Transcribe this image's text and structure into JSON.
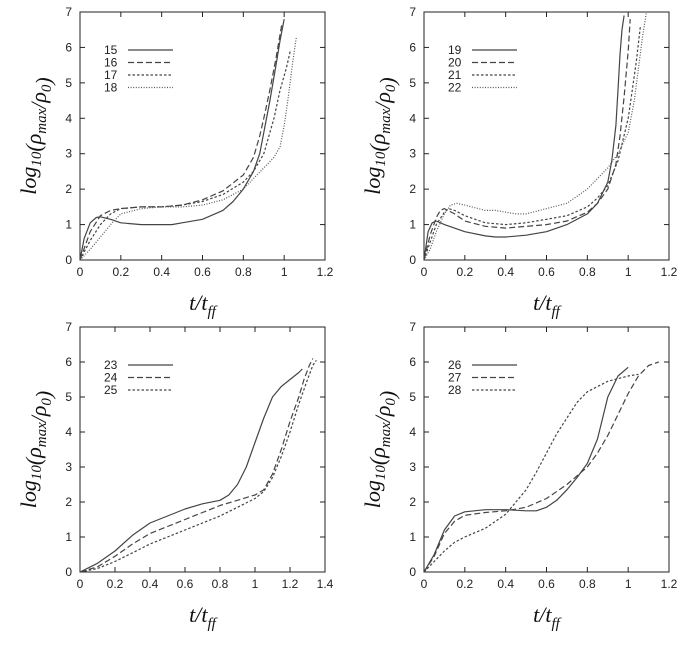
{
  "chart_data": [
    {
      "type": "line",
      "xlabel": "t/t_ff",
      "ylabel": "log10(ρmax/ρ0)",
      "xlim": [
        0,
        1.2
      ],
      "ylim": [
        0,
        7
      ],
      "xticks": [
        "0",
        "0.2",
        "0.4",
        "0.6",
        "0.8",
        "1",
        "1.2"
      ],
      "yticks": [
        "0",
        "1",
        "2",
        "3",
        "4",
        "5",
        "6",
        "7"
      ],
      "legend_position": "top-left",
      "series": [
        {
          "name": "15",
          "dash": "solid",
          "x": [
            0,
            0.02,
            0.05,
            0.08,
            0.1,
            0.15,
            0.2,
            0.3,
            0.4,
            0.45,
            0.5,
            0.6,
            0.7,
            0.75,
            0.8,
            0.85,
            0.88,
            0.9,
            0.93,
            0.96,
            0.98,
            1.0
          ],
          "y": [
            0,
            0.6,
            1.05,
            1.2,
            1.22,
            1.15,
            1.05,
            1.0,
            1.0,
            1.0,
            1.05,
            1.15,
            1.4,
            1.65,
            2.0,
            2.5,
            3.0,
            3.6,
            4.5,
            5.5,
            6.2,
            6.8
          ]
        },
        {
          "name": "16",
          "dash": "dashed",
          "x": [
            0,
            0.05,
            0.1,
            0.15,
            0.2,
            0.3,
            0.4,
            0.5,
            0.6,
            0.7,
            0.8,
            0.85,
            0.88,
            0.9,
            0.93,
            0.96,
            0.99
          ],
          "y": [
            0,
            0.8,
            1.25,
            1.4,
            1.45,
            1.5,
            1.5,
            1.55,
            1.7,
            1.95,
            2.4,
            2.9,
            3.5,
            4.0,
            4.8,
            5.7,
            6.7
          ]
        },
        {
          "name": "17",
          "dash": "dotted",
          "x": [
            0,
            0.05,
            0.1,
            0.15,
            0.2,
            0.3,
            0.4,
            0.5,
            0.6,
            0.7,
            0.8,
            0.85,
            0.9,
            0.95,
            0.98,
            1.01,
            1.03
          ],
          "y": [
            0,
            0.55,
            1.0,
            1.3,
            1.45,
            1.5,
            1.5,
            1.55,
            1.65,
            1.85,
            2.2,
            2.5,
            3.0,
            4.0,
            4.8,
            5.4,
            5.9
          ]
        },
        {
          "name": "18",
          "dash": "fine-dotted",
          "x": [
            0,
            0.05,
            0.1,
            0.15,
            0.2,
            0.3,
            0.4,
            0.5,
            0.6,
            0.7,
            0.8,
            0.85,
            0.9,
            0.95,
            0.98,
            1.0,
            1.02,
            1.04,
            1.06
          ],
          "y": [
            0,
            0.3,
            0.65,
            1.0,
            1.3,
            1.45,
            1.5,
            1.5,
            1.55,
            1.7,
            2.0,
            2.3,
            2.6,
            2.9,
            3.2,
            3.8,
            4.6,
            5.5,
            6.3
          ]
        }
      ]
    },
    {
      "type": "line",
      "xlabel": "t/t_ff",
      "ylabel": "log10(ρmax/ρ0)",
      "xlim": [
        0,
        1.2
      ],
      "ylim": [
        0,
        7
      ],
      "xticks": [
        "0",
        "0.2",
        "0.4",
        "0.6",
        "0.8",
        "1",
        "1.2"
      ],
      "yticks": [
        "0",
        "1",
        "2",
        "3",
        "4",
        "5",
        "6",
        "7"
      ],
      "legend_position": "top-left",
      "series": [
        {
          "name": "19",
          "dash": "solid",
          "x": [
            0,
            0.02,
            0.04,
            0.06,
            0.1,
            0.2,
            0.3,
            0.35,
            0.4,
            0.5,
            0.6,
            0.7,
            0.8,
            0.85,
            0.9,
            0.92,
            0.94,
            0.95,
            0.96,
            0.97,
            0.98
          ],
          "y": [
            0,
            0.8,
            1.05,
            1.1,
            1.0,
            0.8,
            0.68,
            0.65,
            0.65,
            0.7,
            0.8,
            1.0,
            1.3,
            1.6,
            2.2,
            2.8,
            3.8,
            4.8,
            5.8,
            6.5,
            6.9
          ]
        },
        {
          "name": "20",
          "dash": "dashed",
          "x": [
            0,
            0.03,
            0.06,
            0.08,
            0.1,
            0.15,
            0.2,
            0.3,
            0.4,
            0.5,
            0.6,
            0.7,
            0.8,
            0.85,
            0.9,
            0.94,
            0.96,
            0.98,
            1.0,
            1.01
          ],
          "y": [
            0,
            0.7,
            1.2,
            1.4,
            1.45,
            1.3,
            1.1,
            0.95,
            0.9,
            0.95,
            1.0,
            1.1,
            1.35,
            1.6,
            2.0,
            2.7,
            3.5,
            4.6,
            5.9,
            6.8
          ]
        },
        {
          "name": "21",
          "dash": "dotted",
          "x": [
            0,
            0.03,
            0.06,
            0.1,
            0.12,
            0.15,
            0.2,
            0.3,
            0.4,
            0.5,
            0.6,
            0.7,
            0.8,
            0.85,
            0.9,
            0.95,
            1.0,
            1.02,
            1.04,
            1.06
          ],
          "y": [
            0,
            0.5,
            1.0,
            1.35,
            1.45,
            1.4,
            1.25,
            1.05,
            1.0,
            1.05,
            1.15,
            1.25,
            1.5,
            1.75,
            2.1,
            2.8,
            4.0,
            4.8,
            5.6,
            6.6
          ]
        },
        {
          "name": "22",
          "dash": "fine-dotted",
          "x": [
            0,
            0.03,
            0.06,
            0.1,
            0.13,
            0.16,
            0.2,
            0.3,
            0.35,
            0.4,
            0.45,
            0.5,
            0.6,
            0.7,
            0.75,
            0.8,
            0.85,
            0.9,
            0.95,
            1.0,
            1.03,
            1.05,
            1.07,
            1.09
          ],
          "y": [
            0,
            0.3,
            0.8,
            1.3,
            1.55,
            1.6,
            1.55,
            1.4,
            1.4,
            1.35,
            1.3,
            1.3,
            1.45,
            1.6,
            1.8,
            2.0,
            2.3,
            2.6,
            3.0,
            3.6,
            4.5,
            5.4,
            6.3,
            7.0
          ]
        }
      ]
    },
    {
      "type": "line",
      "xlabel": "t/t_ff",
      "ylabel": "log10(ρmax/ρ0)",
      "xlim": [
        0,
        1.4
      ],
      "ylim": [
        0,
        7
      ],
      "xticks": [
        "0",
        "0.2",
        "0.4",
        "0.6",
        "0.8",
        "1",
        "1.2",
        "1.4"
      ],
      "yticks": [
        "0",
        "1",
        "2",
        "3",
        "4",
        "5",
        "6",
        "7"
      ],
      "legend_position": "top-left",
      "series": [
        {
          "name": "23",
          "dash": "solid",
          "x": [
            0,
            0.1,
            0.2,
            0.3,
            0.4,
            0.5,
            0.6,
            0.7,
            0.8,
            0.85,
            0.9,
            0.95,
            1.0,
            1.05,
            1.1,
            1.15,
            1.2,
            1.25,
            1.27
          ],
          "y": [
            0,
            0.25,
            0.6,
            1.05,
            1.4,
            1.6,
            1.8,
            1.95,
            2.05,
            2.2,
            2.5,
            3.0,
            3.7,
            4.4,
            5.0,
            5.3,
            5.5,
            5.7,
            5.8
          ]
        },
        {
          "name": "24",
          "dash": "dashed",
          "x": [
            0,
            0.1,
            0.2,
            0.3,
            0.4,
            0.5,
            0.6,
            0.7,
            0.8,
            0.9,
            1.0,
            1.05,
            1.1,
            1.15,
            1.2,
            1.25,
            1.28,
            1.31,
            1.33
          ],
          "y": [
            0,
            0.15,
            0.45,
            0.8,
            1.1,
            1.3,
            1.5,
            1.7,
            1.9,
            2.05,
            2.2,
            2.35,
            2.8,
            3.5,
            4.3,
            5.0,
            5.5,
            5.9,
            6.1
          ]
        },
        {
          "name": "25",
          "dash": "dotted",
          "x": [
            0,
            0.1,
            0.2,
            0.3,
            0.4,
            0.5,
            0.6,
            0.7,
            0.8,
            0.9,
            1.0,
            1.05,
            1.1,
            1.15,
            1.2,
            1.25,
            1.3,
            1.33,
            1.35
          ],
          "y": [
            0,
            0.1,
            0.3,
            0.55,
            0.8,
            1.0,
            1.2,
            1.4,
            1.6,
            1.85,
            2.1,
            2.3,
            2.7,
            3.3,
            4.0,
            4.8,
            5.5,
            5.9,
            6.05
          ]
        }
      ]
    },
    {
      "type": "line",
      "xlabel": "t/t_ff",
      "ylabel": "log10(ρmax/ρ0)",
      "xlim": [
        0,
        1.2
      ],
      "ylim": [
        0,
        7
      ],
      "xticks": [
        "0",
        "0.2",
        "0.4",
        "0.6",
        "0.8",
        "1",
        "1.2"
      ],
      "yticks": [
        "0",
        "1",
        "2",
        "3",
        "4",
        "5",
        "6",
        "7"
      ],
      "legend_position": "top-left",
      "series": [
        {
          "name": "26",
          "dash": "solid",
          "x": [
            0,
            0.05,
            0.1,
            0.15,
            0.2,
            0.3,
            0.4,
            0.5,
            0.55,
            0.6,
            0.65,
            0.7,
            0.75,
            0.8,
            0.85,
            0.9,
            0.95,
            1.0
          ],
          "y": [
            0,
            0.5,
            1.2,
            1.6,
            1.72,
            1.78,
            1.78,
            1.75,
            1.75,
            1.85,
            2.05,
            2.35,
            2.7,
            3.1,
            3.8,
            5.0,
            5.6,
            5.85
          ]
        },
        {
          "name": "27",
          "dash": "dashed",
          "x": [
            0,
            0.05,
            0.1,
            0.15,
            0.2,
            0.3,
            0.4,
            0.5,
            0.6,
            0.7,
            0.8,
            0.85,
            0.9,
            0.95,
            1.0,
            1.05,
            1.1,
            1.15
          ],
          "y": [
            0,
            0.45,
            1.1,
            1.45,
            1.62,
            1.7,
            1.75,
            1.85,
            2.1,
            2.5,
            3.0,
            3.4,
            3.9,
            4.5,
            5.1,
            5.6,
            5.9,
            6.0
          ]
        },
        {
          "name": "28",
          "dash": "dotted",
          "x": [
            0,
            0.05,
            0.1,
            0.15,
            0.2,
            0.3,
            0.4,
            0.5,
            0.55,
            0.6,
            0.65,
            0.7,
            0.75,
            0.8,
            0.9,
            1.0,
            1.05
          ],
          "y": [
            0,
            0.3,
            0.6,
            0.85,
            1.0,
            1.25,
            1.65,
            2.35,
            2.85,
            3.4,
            3.95,
            4.4,
            4.85,
            5.15,
            5.45,
            5.6,
            5.65
          ]
        }
      ]
    }
  ]
}
